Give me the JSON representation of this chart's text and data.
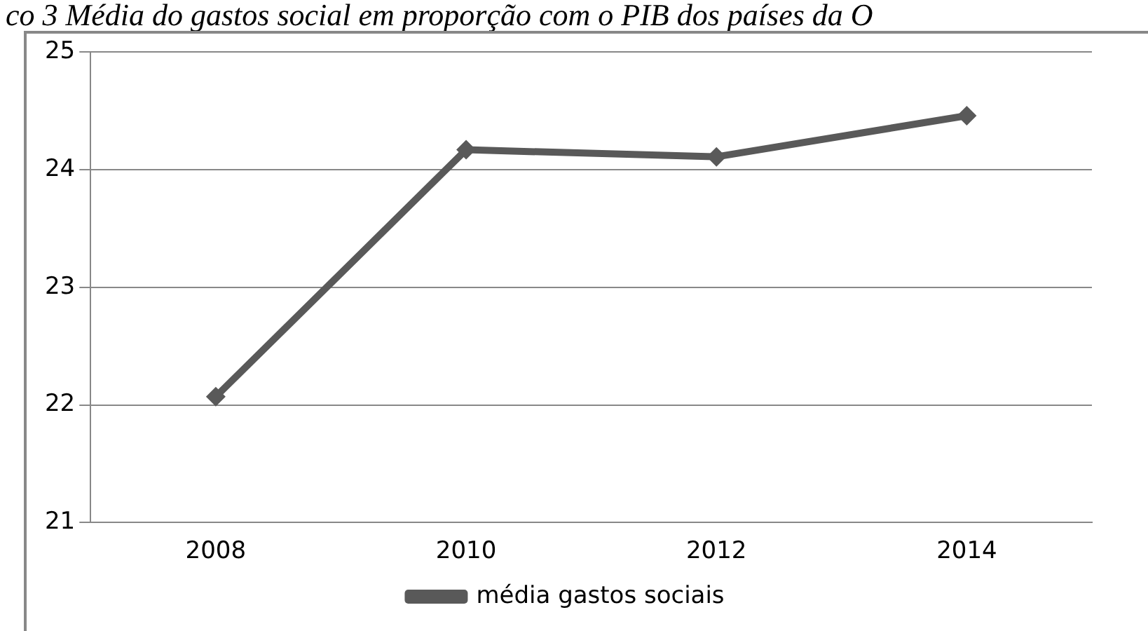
{
  "chart_data": {
    "type": "line",
    "title": "co 3 Média do gastos social em proporção com o PIB dos países da O",
    "categories": [
      "2008",
      "2010",
      "2012",
      "2014"
    ],
    "series": [
      {
        "name": "média gastos sociais",
        "color": "#595959",
        "values": [
          22.07,
          24.17,
          24.11,
          24.46
        ]
      }
    ],
    "ylim": [
      21,
      25
    ],
    "yticks": [
      21,
      22,
      23,
      24,
      25
    ],
    "grid": "y",
    "legend": "bottom",
    "marker": "diamond",
    "line_style": "solid"
  }
}
